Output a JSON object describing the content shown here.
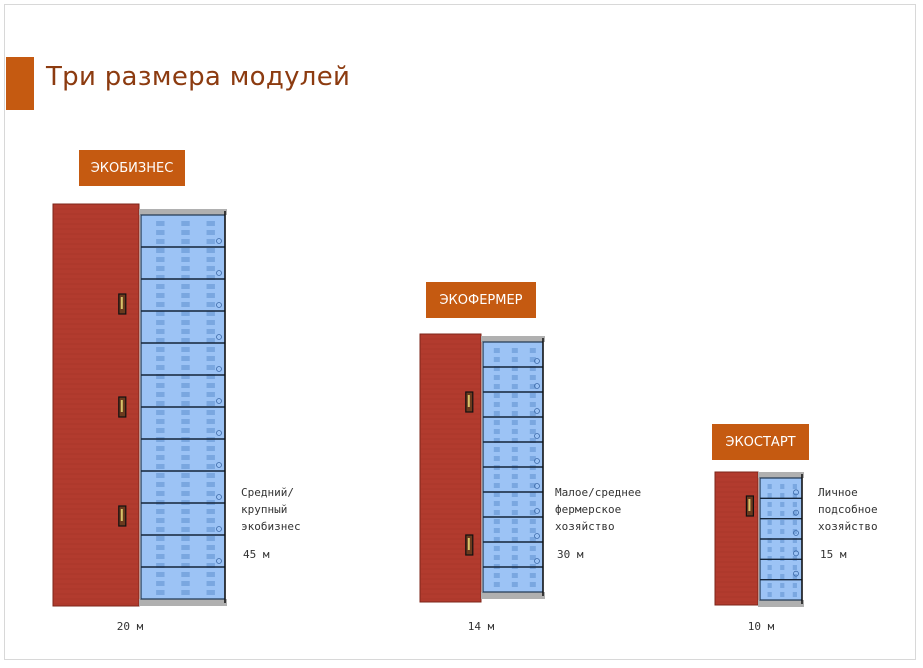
{
  "slide": {
    "title": "Три размера модулей"
  },
  "colors": {
    "accent": "#c55a11",
    "building": "#b23b2e",
    "greenhouse": "#9cc3f5",
    "roof": "#b0b0b0"
  },
  "modules": [
    {
      "id": "ekobiznes",
      "label": "ЭКОБИЗНЕС",
      "description": "Средний/\nкрупный\nэкобизнес",
      "size": "45 м",
      "width": "20 м",
      "doors": 3,
      "rows": 11
    },
    {
      "id": "ekofermer",
      "label": "ЭКОФЕРМЕР",
      "description": "Малое/среднее\nфермерское\nхозяйство",
      "size": "30 м",
      "width": "14 м",
      "doors": 2,
      "rows": 9
    },
    {
      "id": "ekostart",
      "label": "ЭКОСТАРТ",
      "description": "Личное\nподсобное\nхозяйство",
      "size": "15 м",
      "width": "10 м",
      "doors": 1,
      "rows": 5
    }
  ]
}
